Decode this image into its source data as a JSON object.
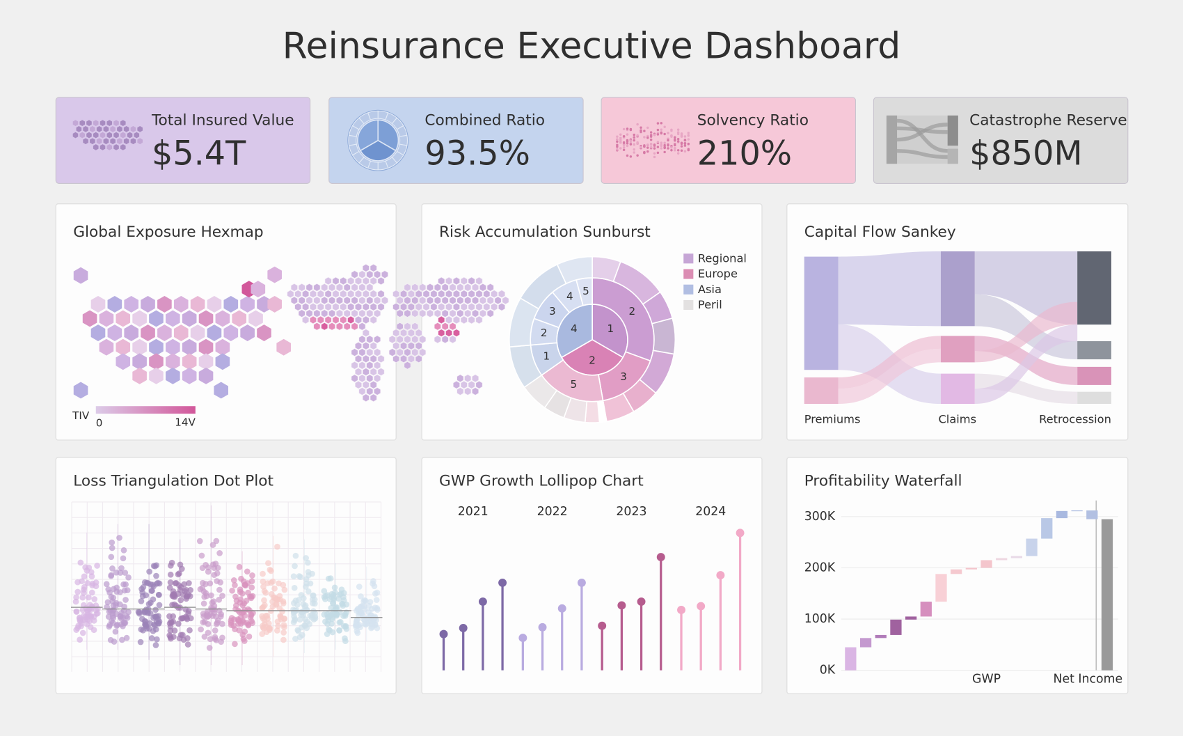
{
  "title": "Reinsurance Executive Dashboard",
  "kpis": [
    {
      "label": "Total Insured Value",
      "value": "$5.4T",
      "color": "#d9c8ea"
    },
    {
      "label": "Combined Ratio",
      "value": "93.5%",
      "color": "#c4d4ee"
    },
    {
      "label": "Solvency Ratio",
      "value": "210%",
      "color": "#f6c8d8"
    },
    {
      "label": "Catastrophe Reserve",
      "value": "$850M",
      "color": "#dcdcdc"
    }
  ],
  "chart_data": [
    {
      "type": "hexmap",
      "title": "Global Exposure Hexmap",
      "legend_title": "TIV",
      "legend_min": 0,
      "legend_max": "14V",
      "colors": [
        "#dccbe8",
        "#d2579a"
      ]
    },
    {
      "type": "sunburst",
      "title": "Risk Accumulation Sunburst",
      "legend": [
        {
          "name": "Regional",
          "color": "#c6a6d6"
        },
        {
          "name": "Europe",
          "color": "#db8db3"
        },
        {
          "name": "Asia",
          "color": "#b1bee2"
        },
        {
          "name": "Peril",
          "color": "#e3e1e1"
        }
      ],
      "rings": [
        {
          "labels": [
            "1",
            "2",
            "4"
          ],
          "values": [
            120,
            120,
            120
          ],
          "colors": [
            "#c393cc",
            "#d982b5",
            "#a9b9df"
          ]
        },
        {
          "labels": [
            "2",
            "3",
            "5",
            "1",
            "2",
            "3",
            "4",
            "5"
          ],
          "values": [
            110,
            60,
            65,
            30,
            25,
            30,
            25,
            15
          ],
          "colors": [
            "#cb9dd2",
            "#e19dc5",
            "#ebb9d2",
            "#c9d4eb",
            "#d2dbf0",
            "#cbd5ee",
            "#d7dff2",
            "#dce2f3"
          ]
        },
        {
          "values": [
            20,
            35,
            20,
            25,
            30,
            20,
            20,
            5,
            10,
            15,
            15,
            20,
            30,
            35,
            35,
            25
          ],
          "colors": [
            "#e4cfe9",
            "#d8b6de",
            "#cfa8d8",
            "#c9b6d3",
            "#d2a9d6",
            "#e8b0cd",
            "#f0c2d7",
            "#ffffff",
            "#f4dde5",
            "#eee4e8",
            "#e6e2e3",
            "#ebe8e9",
            "#d6e0ec",
            "#dbe4f0",
            "#d3ddec",
            "#dfe6f2"
          ]
        }
      ]
    },
    {
      "type": "sankey",
      "title": "Capital Flow Sankey",
      "stages": [
        "Premiums",
        "Claims",
        "Retrocession"
      ]
    },
    {
      "type": "dot_plot",
      "title": "Loss Triangulation Dot Plot",
      "ylim": [
        0,
        100
      ],
      "columns": [
        {
          "color": "#d7b5e2",
          "low": 13,
          "median": 38,
          "high": 82
        },
        {
          "color": "#bb9bcd",
          "low": 13,
          "median": 37,
          "high": 87
        },
        {
          "color": "#9b83b8",
          "low": 7,
          "median": 37,
          "high": 87
        },
        {
          "color": "#a17bb1",
          "low": 4,
          "median": 38,
          "high": 78
        },
        {
          "color": "#c99dcb",
          "low": 4,
          "median": 37,
          "high": 98
        },
        {
          "color": "#d893bd",
          "low": 4,
          "median": 36,
          "high": 71
        },
        {
          "color": "#f6cbc8",
          "low": 9,
          "median": 36,
          "high": 80
        },
        {
          "color": "#cfe0e9",
          "low": 11,
          "median": 36,
          "high": 78
        },
        {
          "color": "#c3dbe5",
          "low": 13,
          "median": 36,
          "high": 64
        },
        {
          "color": "#d4e2f0",
          "low": 18,
          "median": 32,
          "high": 62
        }
      ]
    },
    {
      "type": "lollipop",
      "title": "GWP Growth Lollipop Chart",
      "ylim": [
        0,
        200
      ],
      "groups": [
        {
          "label": "2021",
          "color": "#7d69a6",
          "values": [
            48,
            56,
            91,
            116
          ]
        },
        {
          "label": "2022",
          "color": "#b9abe0",
          "values": [
            43,
            57,
            82,
            116
          ]
        },
        {
          "label": "2023",
          "color": "#b65c8e",
          "values": [
            59,
            86,
            91,
            150
          ]
        },
        {
          "label": "2024",
          "color": "#f2a9c7",
          "values": [
            80,
            85,
            126,
            182
          ]
        }
      ]
    },
    {
      "type": "waterfall",
      "title": "Profitability Waterfall",
      "ylim": [
        0,
        330000
      ],
      "yticks": [
        {
          "value": 0,
          "label": "0K"
        },
        {
          "value": 100000,
          "label": "100K"
        },
        {
          "value": 200000,
          "label": "200K"
        },
        {
          "value": 300000,
          "label": "300K"
        }
      ],
      "grid": true,
      "categories": [
        null,
        null,
        null,
        null,
        null,
        null,
        null,
        null,
        null,
        "GWP",
        null,
        null,
        null,
        null,
        null,
        null,
        null,
        "Net Income"
      ],
      "values": [
        45000,
        18000,
        6000,
        30000,
        6000,
        29000,
        54000,
        9000,
        3000,
        15000,
        4000,
        4000,
        34000,
        40000,
        14000,
        1000,
        -17000,
        295000
      ],
      "is_total": [
        false,
        false,
        false,
        false,
        false,
        false,
        false,
        false,
        false,
        false,
        false,
        false,
        false,
        false,
        false,
        false,
        false,
        true
      ],
      "colors": [
        "#dab5e4",
        "#c499cf",
        "#b07bb9",
        "#a0629f",
        "#a0629f",
        "#d68fbe",
        "#f8d0d6",
        "#f5c9cf",
        "#f4c5cc",
        "#f4c5cc",
        "#eed7e1",
        "#e8dae7",
        "#c8d3eb",
        "#b9c8e6",
        "#a9b9e0",
        "#a9b9e0",
        "#b2c0e2",
        "#9a9a9a"
      ]
    }
  ]
}
